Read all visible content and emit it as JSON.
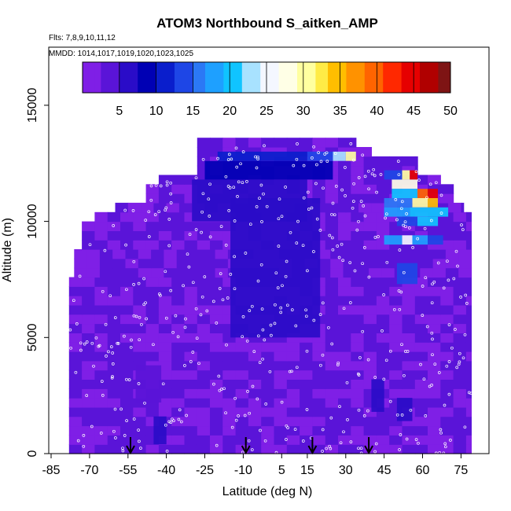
{
  "chart_data": {
    "type": "heatmap",
    "title": "ATOM3 Northbound S_aitken_AMP",
    "flights_note": "Flts: 7,8,9,10,11,12",
    "dates_note": "MMDD: 1014,1017,1019,1020,1023,1025",
    "xlabel": "Latitude (deg N)",
    "ylabel": "Altitude (m)",
    "xlim": [
      -85,
      85
    ],
    "ylim": [
      0,
      17500
    ],
    "x_ticks": [
      -85,
      -70,
      -55,
      -40,
      -25,
      -10,
      5,
      15,
      30,
      45,
      60,
      75
    ],
    "y_ticks": [
      0,
      5000,
      10000,
      15000
    ],
    "colorbar": {
      "min": 0,
      "max": 50,
      "ticks": [
        5,
        10,
        15,
        20,
        25,
        30,
        35,
        40,
        45,
        50
      ],
      "colors": [
        "#7f1fe6",
        "#5a14d8",
        "#2a0cc8",
        "#0000b4",
        "#0a1ecc",
        "#1e46e6",
        "#2b78f5",
        "#1ea0ff",
        "#10c4ff",
        "#a8e2ff",
        "#f4f7ff",
        "#ffffe6",
        "#ffffa0",
        "#ffeb46",
        "#ffbe00",
        "#ff9200",
        "#ff6400",
        "#ff2800",
        "#e60000",
        "#b00000",
        "#7e1414"
      ]
    },
    "flight_arrows_lat": [
      -54,
      -9,
      17,
      39
    ],
    "profile": {
      "lat_start": [
        -78,
        -76,
        -73,
        -68,
        -62,
        -60,
        -48,
        -43,
        -28,
        -28,
        -28
      ],
      "lat_end": [
        79,
        79,
        79,
        79,
        77,
        76,
        72,
        67,
        58,
        40,
        34
      ],
      "top_alt": [
        7400,
        8900,
        9900,
        10200,
        10500,
        10800,
        11700,
        12000,
        12600,
        13000,
        13400
      ]
    },
    "features": [
      {
        "lat": [
          -45,
          -40
        ],
        "alt": [
          400,
          1600
        ],
        "value": 5
      },
      {
        "lat": [
          -52,
          -42
        ],
        "alt": [
          2200,
          3800
        ],
        "value": 4
      },
      {
        "lat": [
          -15,
          20
        ],
        "alt": [
          5000,
          11000
        ],
        "value": 6
      },
      {
        "lat": [
          -30,
          15
        ],
        "alt": [
          10000,
          11800
        ],
        "value": 7
      },
      {
        "lat": [
          -25,
          25
        ],
        "alt": [
          11800,
          12600
        ],
        "value": 8
      },
      {
        "lat": [
          -20,
          15
        ],
        "alt": [
          12600,
          13000
        ],
        "value": 10
      },
      {
        "lat": [
          15,
          25
        ],
        "alt": [
          12600,
          13000
        ],
        "value": 14
      },
      {
        "lat": [
          25,
          30
        ],
        "alt": [
          12600,
          13000
        ],
        "value": 22
      },
      {
        "lat": [
          30,
          34
        ],
        "alt": [
          12600,
          13000
        ],
        "value": 30
      },
      {
        "lat": [
          45,
          52
        ],
        "alt": [
          11800,
          12200
        ],
        "value": 14
      },
      {
        "lat": [
          52,
          55
        ],
        "alt": [
          11800,
          12200
        ],
        "value": 30
      },
      {
        "lat": [
          55,
          58
        ],
        "alt": [
          11800,
          12200
        ],
        "value": 45
      },
      {
        "lat": [
          48,
          58
        ],
        "alt": [
          11400,
          11800
        ],
        "value": 28
      },
      {
        "lat": [
          48,
          58
        ],
        "alt": [
          11000,
          11400
        ],
        "value": 20
      },
      {
        "lat": [
          58,
          62
        ],
        "alt": [
          11000,
          11400
        ],
        "value": 40
      },
      {
        "lat": [
          62,
          66
        ],
        "alt": [
          11000,
          11400
        ],
        "value": 45
      },
      {
        "lat": [
          45,
          56
        ],
        "alt": [
          10600,
          11000
        ],
        "value": 16
      },
      {
        "lat": [
          56,
          62
        ],
        "alt": [
          10600,
          11000
        ],
        "value": 30
      },
      {
        "lat": [
          62,
          66
        ],
        "alt": [
          10600,
          11000
        ],
        "value": 35
      },
      {
        "lat": [
          45,
          55
        ],
        "alt": [
          10200,
          10600
        ],
        "value": 18
      },
      {
        "lat": [
          55,
          70
        ],
        "alt": [
          10200,
          10600
        ],
        "value": 20
      },
      {
        "lat": [
          50,
          58
        ],
        "alt": [
          9800,
          10200
        ],
        "value": 14
      },
      {
        "lat": [
          58,
          66
        ],
        "alt": [
          9800,
          10200
        ],
        "value": 20
      },
      {
        "lat": [
          45,
          52
        ],
        "alt": [
          9000,
          9400
        ],
        "value": 18
      },
      {
        "lat": [
          52,
          56
        ],
        "alt": [
          9000,
          9400
        ],
        "value": 24
      },
      {
        "lat": [
          56,
          62
        ],
        "alt": [
          9000,
          9400
        ],
        "value": 18
      },
      {
        "lat": [
          62,
          68
        ],
        "alt": [
          9000,
          9400
        ],
        "value": 12
      },
      {
        "lat": [
          50,
          58
        ],
        "alt": [
          7300,
          8200
        ],
        "value": 14
      },
      {
        "lat": [
          50,
          56
        ],
        "alt": [
          1400,
          2400
        ],
        "value": 6
      },
      {
        "lat": [
          40,
          45
        ],
        "alt": [
          1800,
          3200
        ],
        "value": 5
      }
    ]
  }
}
